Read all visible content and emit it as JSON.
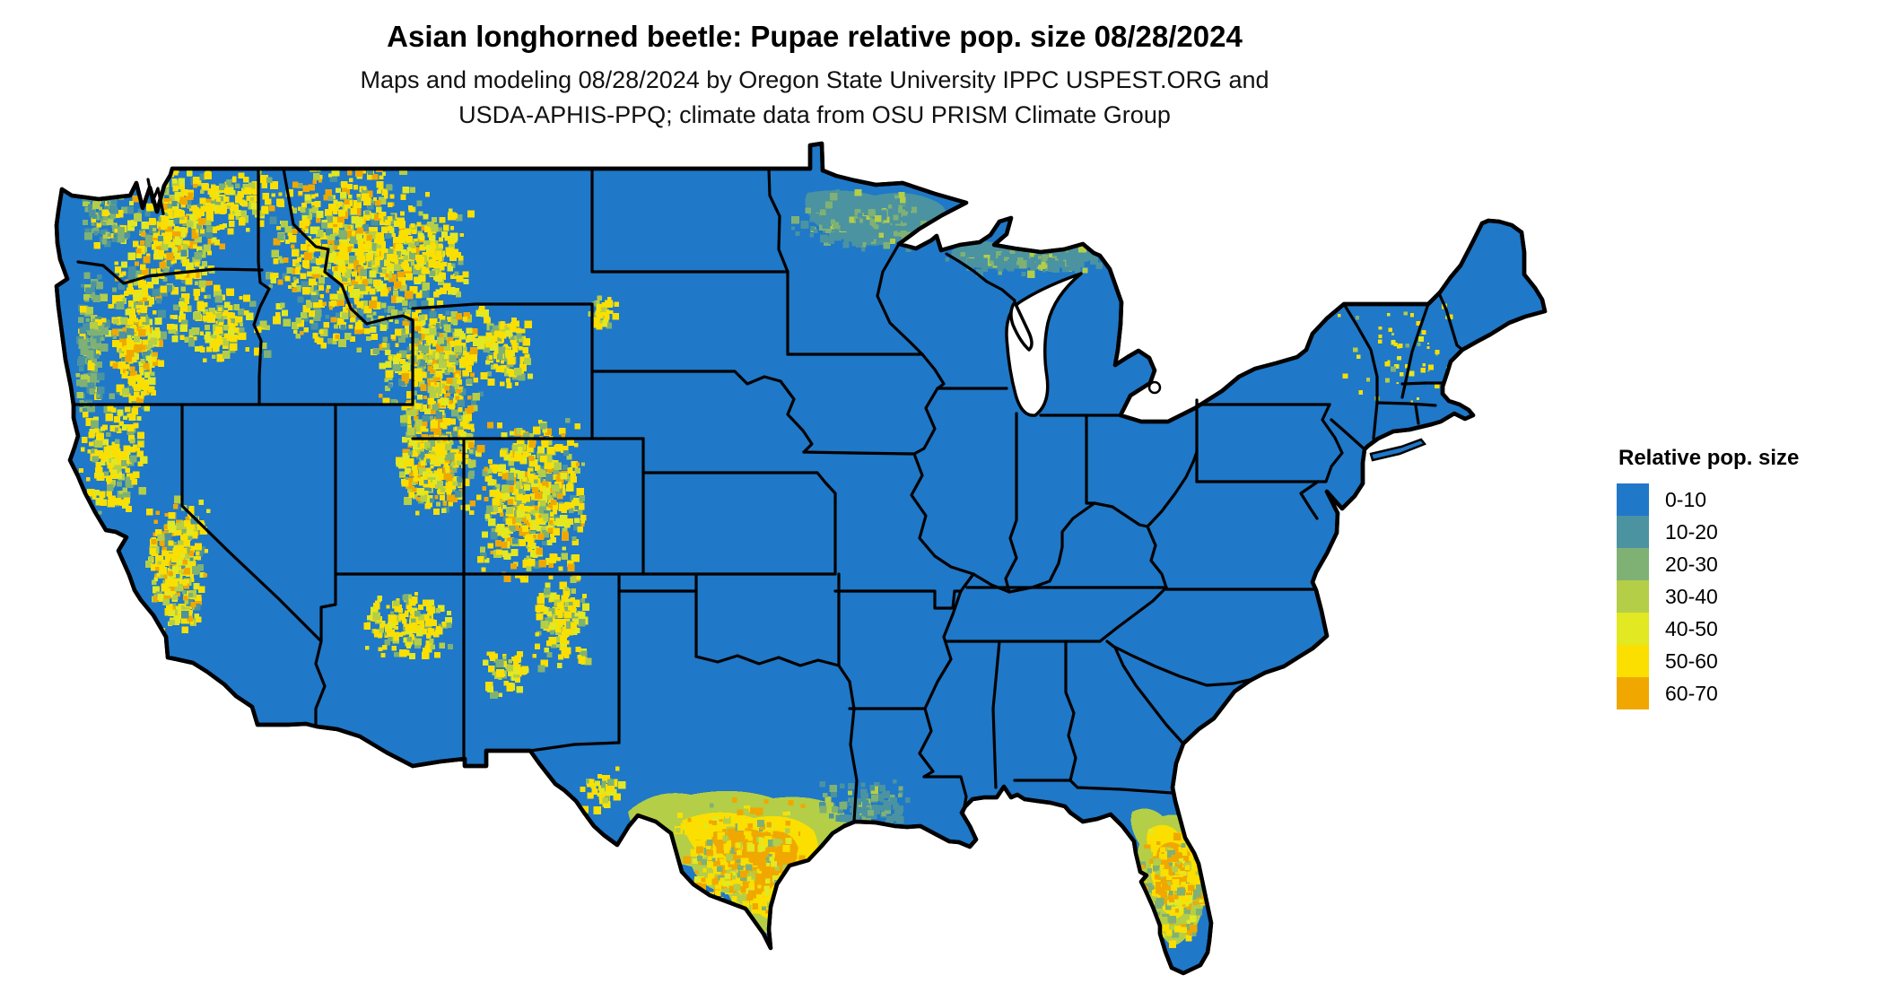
{
  "header": {
    "title": "Asian longhorned beetle: Pupae relative pop. size 08/28/2024",
    "subtitle_line1": "Maps and modeling 08/28/2024 by Oregon State University IPPC USPEST.ORG and",
    "subtitle_line2": "USDA-APHIS-PPQ; climate data from OSU PRISM Climate Group"
  },
  "legend": {
    "title": "Relative pop. size",
    "items": [
      {
        "label": "0-10",
        "color": "#1F78C8"
      },
      {
        "label": "10-20",
        "color": "#4B93A0"
      },
      {
        "label": "20-30",
        "color": "#7FB175"
      },
      {
        "label": "30-40",
        "color": "#B4CE47"
      },
      {
        "label": "40-50",
        "color": "#E2E822"
      },
      {
        "label": "50-60",
        "color": "#FADF00"
      },
      {
        "label": "60-70",
        "color": "#F0A800"
      }
    ]
  },
  "map": {
    "region": "Contiguous United States",
    "land_base_color": "#1F78C8",
    "border_color": "#000000",
    "water_color": "#FFFFFF"
  }
}
